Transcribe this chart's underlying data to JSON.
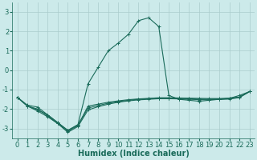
{
  "background_color": "#cceaea",
  "grid_color": "#aacccc",
  "line_color": "#1a6b5a",
  "marker_color": "#1a6b5a",
  "xlabel": "Humidex (Indice chaleur)",
  "xlabel_fontsize": 7,
  "tick_fontsize": 6,
  "xlim": [
    -0.5,
    23.5
  ],
  "ylim": [
    -3.5,
    3.5
  ],
  "yticks": [
    -3,
    -2,
    -1,
    0,
    1,
    2,
    3
  ],
  "xticks": [
    0,
    1,
    2,
    3,
    4,
    5,
    6,
    7,
    8,
    9,
    10,
    11,
    12,
    13,
    14,
    15,
    16,
    17,
    18,
    19,
    20,
    21,
    22,
    23
  ],
  "series": [
    [
      0,
      -1.4
    ],
    [
      1,
      -1.8
    ],
    [
      2,
      -1.9
    ],
    [
      3,
      -2.3
    ],
    [
      4,
      -2.7
    ],
    [
      5,
      -3.1
    ],
    [
      6,
      -2.8
    ],
    [
      7,
      -0.7
    ],
    [
      8,
      0.15
    ],
    [
      9,
      1.0
    ],
    [
      10,
      1.4
    ],
    [
      11,
      1.85
    ],
    [
      12,
      2.55
    ],
    [
      13,
      2.7
    ],
    [
      14,
      2.25
    ],
    [
      15,
      -1.3
    ],
    [
      16,
      -1.5
    ],
    [
      17,
      -1.55
    ],
    [
      18,
      -1.6
    ],
    [
      19,
      -1.55
    ],
    [
      20,
      -1.5
    ],
    [
      21,
      -1.45
    ],
    [
      22,
      -1.3
    ],
    [
      23,
      -1.1
    ]
  ],
  "series2": [
    [
      0,
      -1.4
    ],
    [
      1,
      -1.85
    ],
    [
      2,
      -2.0
    ],
    [
      3,
      -2.35
    ],
    [
      4,
      -2.75
    ],
    [
      5,
      -3.15
    ],
    [
      6,
      -2.85
    ],
    [
      7,
      -1.85
    ],
    [
      8,
      -1.75
    ],
    [
      9,
      -1.65
    ],
    [
      10,
      -1.58
    ],
    [
      11,
      -1.52
    ],
    [
      12,
      -1.48
    ],
    [
      13,
      -1.45
    ],
    [
      14,
      -1.42
    ],
    [
      15,
      -1.42
    ],
    [
      16,
      -1.43
    ],
    [
      17,
      -1.44
    ],
    [
      18,
      -1.45
    ],
    [
      19,
      -1.46
    ],
    [
      20,
      -1.46
    ],
    [
      21,
      -1.44
    ],
    [
      22,
      -1.38
    ],
    [
      23,
      -1.1
    ]
  ],
  "series3": [
    [
      0,
      -1.4
    ],
    [
      1,
      -1.85
    ],
    [
      2,
      -2.1
    ],
    [
      3,
      -2.4
    ],
    [
      4,
      -2.75
    ],
    [
      5,
      -3.2
    ],
    [
      6,
      -2.9
    ],
    [
      7,
      -2.05
    ],
    [
      8,
      -1.88
    ],
    [
      9,
      -1.75
    ],
    [
      10,
      -1.65
    ],
    [
      11,
      -1.58
    ],
    [
      12,
      -1.53
    ],
    [
      13,
      -1.5
    ],
    [
      14,
      -1.47
    ],
    [
      15,
      -1.47
    ],
    [
      16,
      -1.48
    ],
    [
      17,
      -1.5
    ],
    [
      18,
      -1.52
    ],
    [
      19,
      -1.52
    ],
    [
      20,
      -1.51
    ],
    [
      21,
      -1.49
    ],
    [
      22,
      -1.41
    ],
    [
      23,
      -1.1
    ]
  ],
  "series4": [
    [
      0,
      -1.4
    ],
    [
      1,
      -1.85
    ],
    [
      2,
      -2.05
    ],
    [
      3,
      -2.3
    ],
    [
      4,
      -2.7
    ],
    [
      5,
      -3.1
    ],
    [
      6,
      -2.82
    ],
    [
      7,
      -1.95
    ],
    [
      8,
      -1.82
    ],
    [
      9,
      -1.7
    ],
    [
      10,
      -1.62
    ],
    [
      11,
      -1.55
    ],
    [
      12,
      -1.5
    ],
    [
      13,
      -1.47
    ],
    [
      14,
      -1.44
    ],
    [
      15,
      -1.44
    ],
    [
      16,
      -1.45
    ],
    [
      17,
      -1.47
    ],
    [
      18,
      -1.49
    ],
    [
      19,
      -1.49
    ],
    [
      20,
      -1.48
    ],
    [
      21,
      -1.46
    ],
    [
      22,
      -1.39
    ],
    [
      23,
      -1.1
    ]
  ]
}
